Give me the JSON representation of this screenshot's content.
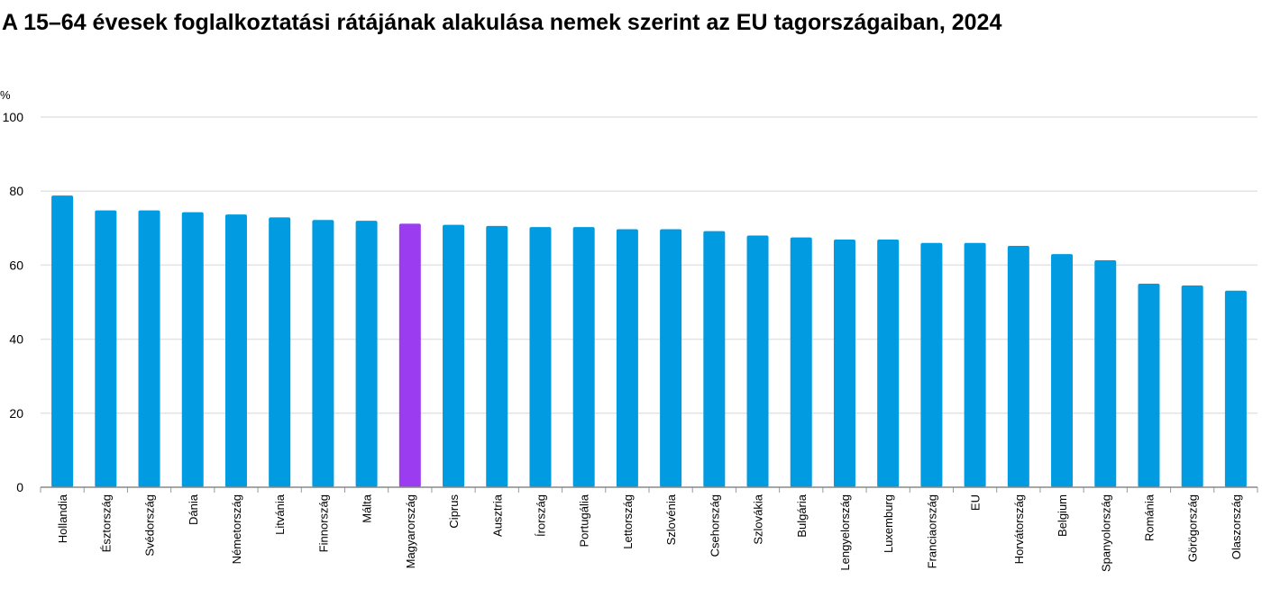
{
  "chart_data": {
    "type": "bar",
    "title": "A 15–64 évesek foglalkoztatási rátájának alakulása nemek szerint az EU tagországaiban, 2024",
    "ylabel": "%",
    "ylim": [
      0,
      100
    ],
    "yticks": [
      0,
      20,
      40,
      60,
      80,
      100
    ],
    "grid": true,
    "categories": [
      "Hollandia",
      "Észtország",
      "Svédország",
      "Dánia",
      "Németország",
      "Litvánia",
      "Finnország",
      "Málta",
      "Magyarország",
      "Ciprus",
      "Ausztria",
      "Írország",
      "Portugália",
      "Lettország",
      "Szlovénia",
      "Csehország",
      "Szlovákia",
      "Bulgária",
      "Lengyelország",
      "Luxemburg",
      "Franciaország",
      "EU",
      "Horvátország",
      "Belgium",
      "Spanyolország",
      "Románia",
      "Görögország",
      "Olaszország"
    ],
    "values": [
      78.8,
      74.8,
      74.8,
      74.3,
      73.7,
      72.9,
      72.2,
      72.0,
      71.2,
      70.9,
      70.6,
      70.3,
      70.3,
      69.7,
      69.7,
      69.2,
      68.0,
      67.5,
      66.9,
      66.9,
      66.0,
      66.0,
      65.2,
      63.0,
      61.3,
      55.0,
      54.5,
      53.1
    ],
    "colors": {
      "default": "#009BE0",
      "highlight": "#9B3CF0",
      "highlight_category": "Magyarország"
    }
  }
}
